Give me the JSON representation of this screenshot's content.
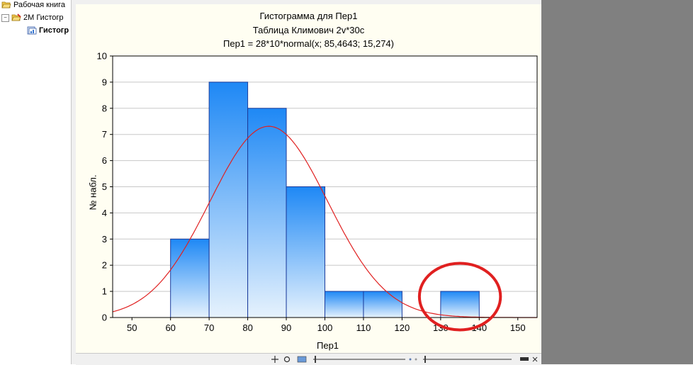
{
  "tree": {
    "items": [
      {
        "label": "Рабочая книга",
        "icon": "folder-open-icon"
      },
      {
        "label": "2M Гистогр",
        "icon": "folder-open-icon"
      },
      {
        "label": "Гистогр",
        "icon": "graph-document-icon"
      }
    ]
  },
  "chart_data": {
    "type": "bar",
    "title": "Гистограмма для Пер1",
    "subtitle": "Таблица Климович 2v*30c",
    "formula": "Пер1 = 28*10*normal(x; 85,4643; 15,274)",
    "xlabel": "Пер1",
    "ylabel": "№ набл.",
    "xlim": [
      45,
      155
    ],
    "ylim": [
      0,
      10
    ],
    "xticks": [
      50,
      60,
      70,
      80,
      90,
      100,
      110,
      120,
      130,
      140,
      150
    ],
    "yticks": [
      0,
      1,
      2,
      3,
      4,
      5,
      6,
      7,
      8,
      9,
      10
    ],
    "bins": [
      {
        "from": 60,
        "to": 70,
        "count": 3
      },
      {
        "from": 70,
        "to": 80,
        "count": 9
      },
      {
        "from": 80,
        "to": 90,
        "count": 8
      },
      {
        "from": 90,
        "to": 100,
        "count": 5
      },
      {
        "from": 100,
        "to": 110,
        "count": 1
      },
      {
        "from": 110,
        "to": 120,
        "count": 1
      },
      {
        "from": 130,
        "to": 140,
        "count": 1
      }
    ],
    "fit_curve": {
      "type": "normal",
      "scale": 280,
      "mean": 85.4643,
      "sd": 15.274,
      "color": "#e02020"
    },
    "grid": true,
    "bar_color_top": "#1e88f5",
    "bar_color_bottom": "#e6f2fd",
    "bar_edge_color": "#1c3c9c",
    "annotation": {
      "type": "circle",
      "around_bin": [
        130,
        140
      ],
      "color": "#e02020"
    }
  }
}
